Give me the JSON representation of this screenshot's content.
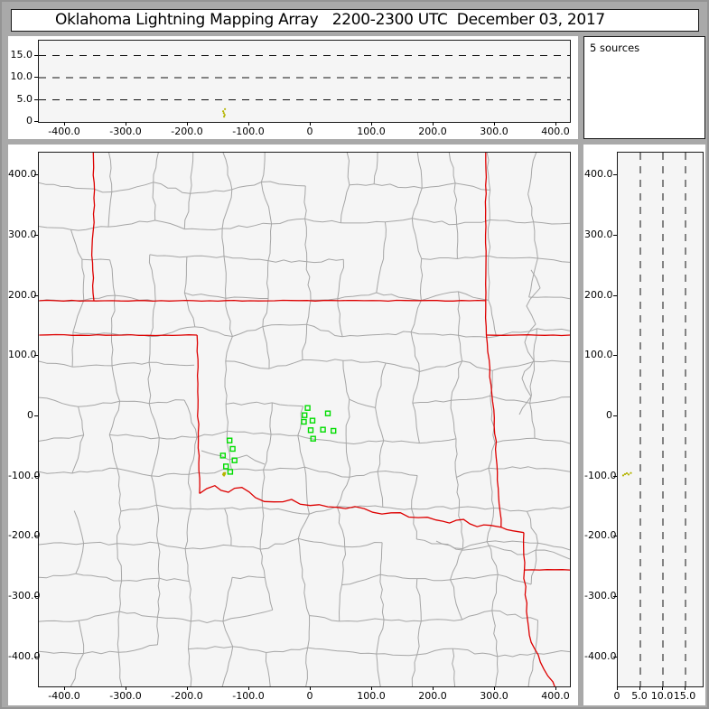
{
  "title": "Oklahoma Lightning Mapping Array   2200-2300 UTC  December 03, 2017",
  "colors": {
    "frame_bg": "#a9a9a9",
    "card_bg": "#ffffff",
    "plot_bg": "#f5f5f5",
    "axis": "#1a1a1a",
    "county_line": "#a6a6a6",
    "state_border": "#dd0000",
    "station_marker": "#00dd00",
    "source_point": "#b4b400",
    "gridline": "#111111"
  },
  "chart_data": {
    "type": "scatter",
    "title": "Oklahoma Lightning Mapping Array   2200-2300 UTC  December 03, 2017",
    "legend_position": "top-right",
    "sources": {
      "count": 5,
      "label": "5 sources",
      "points_km": [
        {
          "x": -141.5,
          "y": -94.5,
          "alt": 2.0
        },
        {
          "x": -140.0,
          "y": -96.0,
          "alt": 1.6
        },
        {
          "x": -142.5,
          "y": -96.5,
          "alt": 2.4
        },
        {
          "x": -141.0,
          "y": -98.0,
          "alt": 1.2
        },
        {
          "x": -139.5,
          "y": -94.0,
          "alt": 2.9
        }
      ]
    },
    "stations_km": [
      [
        -5,
        14
      ],
      [
        -10,
        2
      ],
      [
        3,
        -7
      ],
      [
        -11,
        -9
      ],
      [
        0,
        -23
      ],
      [
        20,
        -22
      ],
      [
        4,
        -37
      ],
      [
        28,
        5
      ],
      [
        37,
        -24
      ],
      [
        -132,
        -40
      ],
      [
        -127,
        -54
      ],
      [
        -143,
        -65
      ],
      [
        -124,
        -73
      ],
      [
        -138,
        -83
      ],
      [
        -131,
        -92
      ]
    ],
    "panels": {
      "ew_alt": {
        "position": "top",
        "x_axis_km": [
          -442,
          422
        ],
        "alt_range_km": [
          0,
          18.5
        ],
        "dashed_alt_lines_km": [
          5,
          10,
          15
        ],
        "alt_ticks": [
          {
            "v": 0,
            "label": "0"
          },
          {
            "v": 5,
            "label": "5.0"
          },
          {
            "v": 10,
            "label": "10.0"
          },
          {
            "v": 15,
            "label": "15.0"
          }
        ]
      },
      "plan_view": {
        "position": "center",
        "xlim_km": [
          -442,
          422
        ],
        "ylim_km": [
          -448,
          438
        ],
        "x_ticks": [
          {
            "v": -400,
            "label": "-400.0"
          },
          {
            "v": -300,
            "label": "-300.0"
          },
          {
            "v": -200,
            "label": "-200.0"
          },
          {
            "v": -100,
            "label": "-100.0"
          },
          {
            "v": 0,
            "label": "0"
          },
          {
            "v": 100,
            "label": "100.0"
          },
          {
            "v": 200,
            "label": "200.0"
          },
          {
            "v": 300,
            "label": "300.0"
          },
          {
            "v": 400,
            "label": "400.0"
          }
        ],
        "y_ticks": [
          {
            "v": 400,
            "label": "400.0"
          },
          {
            "v": 300,
            "label": "300.0"
          },
          {
            "v": 200,
            "label": "200.0"
          },
          {
            "v": 100,
            "label": "100.0"
          },
          {
            "v": 0,
            "label": "0"
          },
          {
            "v": -100,
            "label": "-100.0"
          },
          {
            "v": -200,
            "label": "-200.0"
          },
          {
            "v": -300,
            "label": "-300.0"
          },
          {
            "v": -400,
            "label": "-400.0"
          }
        ]
      },
      "ns_alt": {
        "position": "right",
        "y_axis_km": [
          -448,
          438
        ],
        "alt_range_km": [
          0,
          18.8
        ],
        "dashed_alt_lines_km": [
          5,
          10,
          15
        ],
        "alt_ticks": [
          {
            "v": 0,
            "label": "0"
          },
          {
            "v": 5,
            "label": "5.0"
          },
          {
            "v": 10,
            "label": "10.0"
          },
          {
            "v": 15,
            "label": "15.0"
          }
        ]
      }
    },
    "state_borders_km": [
      {
        "name": "co-ks-border",
        "wiggle": 0.8,
        "pts": [
          [
            -354,
            438
          ],
          [
            -352,
            350
          ],
          [
            -356,
            280
          ],
          [
            -353,
            192
          ]
        ]
      },
      {
        "name": "kansas-oklahoma-border",
        "wiggle": 0.5,
        "pts": [
          [
            -442,
            192
          ],
          [
            285,
            192
          ]
        ]
      },
      {
        "name": "ks-mo-ok-border",
        "wiggle": 0.6,
        "pts": [
          [
            285,
            438
          ],
          [
            285,
            192
          ],
          [
            286,
            135
          ]
        ]
      },
      {
        "name": "mo-ar-border",
        "wiggle": 0.5,
        "pts": [
          [
            286,
            135
          ],
          [
            422,
            135
          ]
        ]
      },
      {
        "name": "ok-ar-border",
        "wiggle": 0.8,
        "pts": [
          [
            286,
            135
          ],
          [
            299,
            -3
          ],
          [
            304,
            -93
          ],
          [
            310,
            -184
          ]
        ]
      },
      {
        "name": "tx-panhandle-north-border",
        "wiggle": 0.5,
        "pts": [
          [
            -442,
            135
          ],
          [
            -185,
            135
          ]
        ]
      },
      {
        "name": "tx-east-border",
        "wiggle": 0.8,
        "pts": [
          [
            -185,
            135
          ],
          [
            -183,
            -40
          ],
          [
            -181,
            -128
          ]
        ]
      },
      {
        "name": "red-river",
        "wiggle": 2.2,
        "pts": [
          [
            -181,
            -128
          ],
          [
            -156,
            -115
          ],
          [
            -134,
            -126
          ],
          [
            -112,
            -118
          ],
          [
            -90,
            -135
          ],
          [
            -60,
            -142
          ],
          [
            -31,
            -138
          ],
          [
            -1,
            -148
          ],
          [
            28,
            -150
          ],
          [
            57,
            -153
          ],
          [
            87,
            -153
          ],
          [
            116,
            -162
          ],
          [
            146,
            -160
          ],
          [
            175,
            -168
          ],
          [
            204,
            -172
          ],
          [
            226,
            -177
          ],
          [
            249,
            -171
          ],
          [
            271,
            -183
          ],
          [
            293,
            -181
          ],
          [
            310,
            -184
          ],
          [
            329,
            -190
          ],
          [
            347,
            -193
          ]
        ]
      },
      {
        "name": "tx-ar-corner",
        "wiggle": 0.6,
        "pts": [
          [
            347,
            -193
          ],
          [
            348,
            -255
          ],
          [
            422,
            -255
          ]
        ]
      },
      {
        "name": "tx-la-border",
        "wiggle": 1.5,
        "pts": [
          [
            348,
            -255
          ],
          [
            352,
            -310
          ],
          [
            356,
            -363
          ],
          [
            374,
            -408
          ],
          [
            399,
            -453
          ]
        ]
      }
    ],
    "rivers_km": [
      {
        "name": "river",
        "pts": [
          [
            358.8,
            243
          ],
          [
            373.5,
            213
          ],
          [
            351.5,
            183
          ],
          [
            366.2,
            153
          ],
          [
            348.5,
            123
          ],
          [
            363.2,
            93
          ],
          [
            344.1,
            63
          ],
          [
            358.8,
            33
          ],
          [
            339.7,
            3
          ]
        ]
      },
      {
        "name": "river",
        "pts": [
          [
            204.4,
            -207
          ],
          [
            248.5,
            -222
          ],
          [
            292.6,
            -214.4
          ],
          [
            336.8,
            -229.4
          ],
          [
            380.9,
            -221.9
          ],
          [
            422,
            -236.9
          ]
        ]
      },
      {
        "name": "river",
        "pts": [
          [
            -177.9,
            -57
          ],
          [
            -133.8,
            -72
          ],
          [
            -104.4,
            -64.5
          ],
          [
            -75,
            -79.5
          ]
        ]
      }
    ]
  }
}
